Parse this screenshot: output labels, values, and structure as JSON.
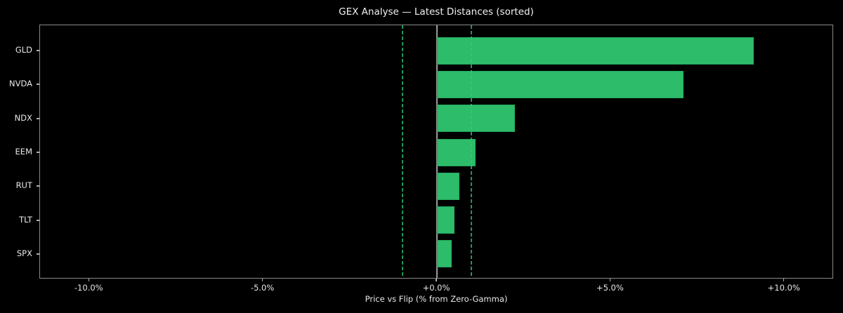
{
  "window": {
    "background": "#000000"
  },
  "chart_data": {
    "type": "bar",
    "orientation": "horizontal",
    "title": "GEX Analyse — Latest Distances (sorted)",
    "xlabel": "Price vs Flip (% from Zero-Gamma)",
    "categories": [
      "GLD",
      "NVDA",
      "NDX",
      "EEM",
      "RUT",
      "TLT",
      "SPX"
    ],
    "values": [
      9.12,
      7.09,
      2.25,
      1.11,
      0.64,
      0.51,
      0.43
    ],
    "unit": "percent",
    "xlim": [
      -11.42,
      11.42
    ],
    "xticks": {
      "values": [
        -10,
        -5,
        0,
        5,
        10
      ],
      "labels": [
        "-10.0%",
        "-5.0%",
        "+0.0%",
        "+5.0%",
        "+10.0%"
      ]
    },
    "reference_lines": [
      {
        "name": "flip-threshold-lower",
        "x": -1.0,
        "style": "dashed",
        "color": "#2ecc71"
      },
      {
        "name": "zero-line",
        "x": 0.0,
        "style": "solid",
        "color": "#9a9a9a"
      },
      {
        "name": "flip-threshold-upper",
        "x": 1.0,
        "style": "dashed",
        "color": "#2ecc71"
      }
    ],
    "layout": {
      "grid": false,
      "legend": "none",
      "sorted": "descending"
    },
    "colors": {
      "bar_fill": "#2dbc6a",
      "bar_edge": "#23a35c",
      "background": "#000000",
      "text": "#e8e8e8",
      "spine": "#8a8a8a"
    }
  }
}
